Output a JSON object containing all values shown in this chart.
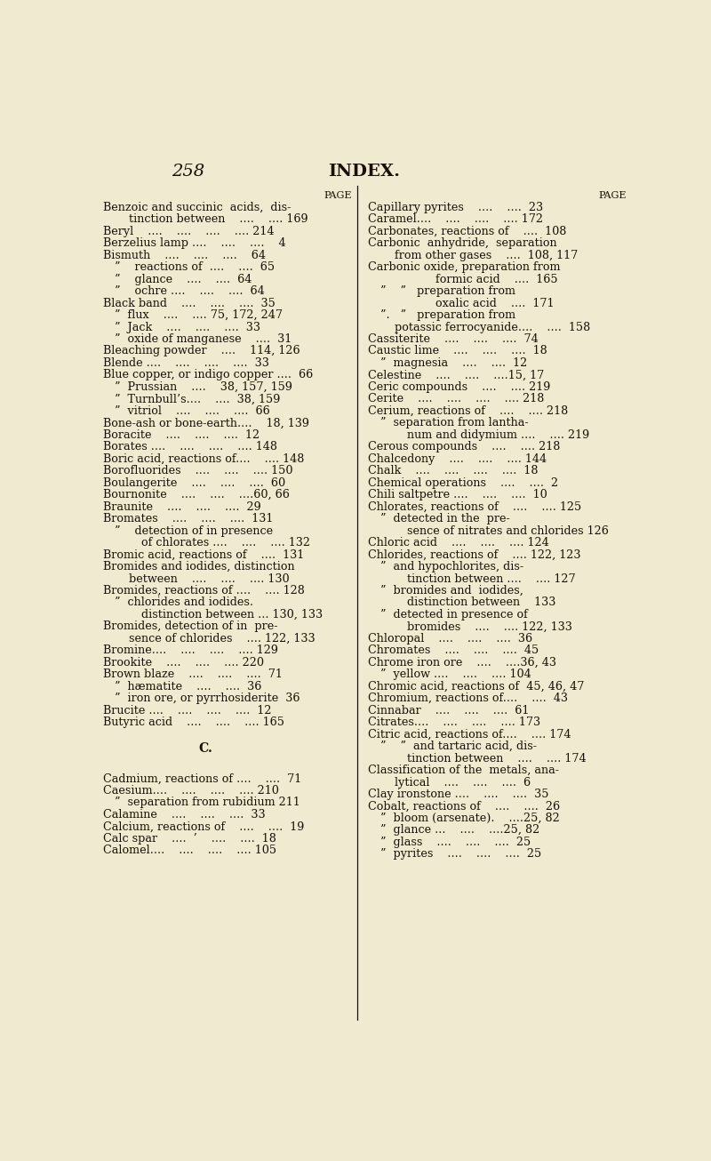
{
  "bg_color": "#f0ead0",
  "text_color": "#1a0e05",
  "page_number": "258",
  "header": "INDEX.",
  "figsize": [
    8.0,
    13.06
  ],
  "dpi": 100,
  "left_entries": [
    {
      "text": "Benzoic and succinic  acids,  dis-",
      "indent": 0,
      "cont": true
    },
    {
      "text": "    tinction between    ....    .... 169",
      "indent": 1
    },
    {
      "text": "Beryl    ....    ....    ....    .... 214",
      "indent": 0
    },
    {
      "text": "Berzelius lamp ....    ....    ....    4",
      "indent": 0
    },
    {
      "text": "Bismuth    ....    ....    ....    64",
      "indent": 0
    },
    {
      "text": "”    reactions of  ....    ....  65",
      "indent": 1
    },
    {
      "text": "”    glance    ....    ....  64",
      "indent": 1
    },
    {
      "text": "”    ochre ....    ....    ....  64",
      "indent": 1
    },
    {
      "text": "Black band    ....    ....    ....  35",
      "indent": 0
    },
    {
      "text": "”  flux    ....    .... 75, 172, 247",
      "indent": 1
    },
    {
      "text": "”  Jack    ....    ....    ....  33",
      "indent": 1
    },
    {
      "text": "”  oxide of manganese    ....  31",
      "indent": 1
    },
    {
      "text": "Bleaching powder    ....    114, 126",
      "indent": 0
    },
    {
      "text": "Blende ....    ....    ....    ....  33",
      "indent": 0
    },
    {
      "text": "Blue copper, or indigo copper ....  66",
      "indent": 0
    },
    {
      "text": "”  Prussian    ....    38, 157, 159",
      "indent": 1
    },
    {
      "text": "”  Turnbull’s....    ....  38, 159",
      "indent": 1
    },
    {
      "text": "”  vitriol    ....    ....    ....  66",
      "indent": 1
    },
    {
      "text": "Bone-ash or bone-earth....    18, 139",
      "indent": 0
    },
    {
      "text": "Boracite    ....    ....    ....  12",
      "indent": 0
    },
    {
      "text": "Borates ....    ....    ....    .... 148",
      "indent": 0
    },
    {
      "text": "Boric acid, reactions of....    .... 148",
      "indent": 0
    },
    {
      "text": "Borofluorides    ....    ....    .... 150",
      "indent": 0
    },
    {
      "text": "Boulangerite    ....    ....    ....  60",
      "indent": 0
    },
    {
      "text": "Bournonite    ....    ....    ....60, 66",
      "indent": 0
    },
    {
      "text": "Braunite    ....    ....    ....  29",
      "indent": 0
    },
    {
      "text": "Bromates    ....    ....    ....  131",
      "indent": 0
    },
    {
      "text": "”    detection of in presence",
      "indent": 1,
      "cont": true
    },
    {
      "text": "    of chlorates ....    ....    .... 132",
      "indent": 2
    },
    {
      "text": "Bromic acid, reactions of    ....  131",
      "indent": 0
    },
    {
      "text": "Bromides and iodides, distinction",
      "indent": 0,
      "cont": true
    },
    {
      "text": "    between    ....    ....    .... 130",
      "indent": 1
    },
    {
      "text": "Bromides, reactions of ....    .... 128",
      "indent": 0
    },
    {
      "text": "”  chlorides and iodides.",
      "indent": 1,
      "cont": true
    },
    {
      "text": "    distinction between ... 130, 133",
      "indent": 2
    },
    {
      "text": "Bromides, detection of in  pre-",
      "indent": 0,
      "cont": true
    },
    {
      "text": "    sence of chlorides    .... 122, 133",
      "indent": 1
    },
    {
      "text": "Bromine....    ....    ....    .... 129",
      "indent": 0
    },
    {
      "text": "Brookite    ....    ....    .... 220",
      "indent": 0
    },
    {
      "text": "Brown blaze    ....    ....    ....  71",
      "indent": 0
    },
    {
      "text": "”  hæmatite    ....    ....  36",
      "indent": 1
    },
    {
      "text": "”  iron ore, or pyrrhosiderite  36",
      "indent": 1
    },
    {
      "text": "Brucite ....    ....    ....    ....  12",
      "indent": 0
    },
    {
      "text": "Butyric acid    ....    ....    .... 165",
      "indent": 0
    },
    {
      "text": "",
      "indent": 0,
      "spacer": true
    },
    {
      "text": "C.",
      "indent": 0,
      "section": true
    },
    {
      "text": "",
      "indent": 0,
      "spacer": true
    },
    {
      "text": "Cadmium, reactions of ....    ....  71",
      "indent": 0
    },
    {
      "text": "Caesium....    ....    ....    .... 210",
      "indent": 0
    },
    {
      "text": "”  separation from rubidium 211",
      "indent": 1
    },
    {
      "text": "Calamine    ....    ....    ....  33",
      "indent": 0
    },
    {
      "text": "Calcium, reactions of    ....    ....  19",
      "indent": 0
    },
    {
      "text": "Calc spar    ....  ’    ....    ....  18",
      "indent": 0
    },
    {
      "text": "Calomel....    ....    ....    .... 105",
      "indent": 0
    }
  ],
  "right_entries": [
    {
      "text": "Capillary pyrites    ....    ....  23",
      "indent": 0
    },
    {
      "text": "Caramel....    ....    ....    .... 172",
      "indent": 0
    },
    {
      "text": "Carbonates, reactions of    ....  108",
      "indent": 0
    },
    {
      "text": "Carbonic  anhydride,  separation",
      "indent": 0,
      "cont": true
    },
    {
      "text": "    from other gases    ....  108, 117",
      "indent": 1
    },
    {
      "text": "Carbonic oxide, preparation from",
      "indent": 0,
      "cont": true
    },
    {
      "text": "            formic acid    ....  165",
      "indent": 2
    },
    {
      "text": "”    ”   preparation from",
      "indent": 1,
      "cont": true
    },
    {
      "text": "            oxalic acid    ....  171",
      "indent": 2
    },
    {
      "text": "”.   ”   preparation from",
      "indent": 1,
      "cont": true
    },
    {
      "text": "    potassic ferrocyanide....    ....  158",
      "indent": 1
    },
    {
      "text": "Cassiterite    ....    ....    ....  74",
      "indent": 0
    },
    {
      "text": "Caustic lime    ....    ....    ....  18",
      "indent": 0
    },
    {
      "text": "”  magnesia    ....    ....  12",
      "indent": 1
    },
    {
      "text": "Celestine    ....    ....    ....15, 17",
      "indent": 0
    },
    {
      "text": "Ceric compounds    ....    .... 219",
      "indent": 0
    },
    {
      "text": "Cerite    ....    ....    ....    .... 218",
      "indent": 0
    },
    {
      "text": "Cerium, reactions of    ....    .... 218",
      "indent": 0
    },
    {
      "text": "”  separation from lantha-",
      "indent": 1,
      "cont": true
    },
    {
      "text": "    num and didymium ....    .... 219",
      "indent": 2
    },
    {
      "text": "Cerous compounds    ....    .... 218",
      "indent": 0
    },
    {
      "text": "Chalcedony    ....    ....    .... 144",
      "indent": 0
    },
    {
      "text": "Chalk    ....    ....    ....    ....  18",
      "indent": 0
    },
    {
      "text": "Chemical operations    ....    ....  2",
      "indent": 0
    },
    {
      "text": "Chili saltpetre ....    ....    ....  10",
      "indent": 0
    },
    {
      "text": "Chlorates, reactions of    ....    .... 125",
      "indent": 0
    },
    {
      "text": "”  detected in the  pre-",
      "indent": 1,
      "cont": true
    },
    {
      "text": "    sence of nitrates and chlorides 126",
      "indent": 2
    },
    {
      "text": "Chloric acid    ....    ....    .... 124",
      "indent": 0
    },
    {
      "text": "Chlorides, reactions of    .... 122, 123",
      "indent": 0
    },
    {
      "text": "”  and hypochlorites, dis-",
      "indent": 1,
      "cont": true
    },
    {
      "text": "    tinction between ....    .... 127",
      "indent": 2
    },
    {
      "text": "”  bromides and  iodides,",
      "indent": 1,
      "cont": true
    },
    {
      "text": "    distinction between    133",
      "indent": 2
    },
    {
      "text": "”  detected in presence of",
      "indent": 1,
      "cont": true
    },
    {
      "text": "    bromides    ....    .... 122, 133",
      "indent": 2
    },
    {
      "text": "Chloropal    ....    ....    ....  36",
      "indent": 0
    },
    {
      "text": "Chromates    ....    ....    ....  45",
      "indent": 0
    },
    {
      "text": "Chrome iron ore    ....    ....36, 43",
      "indent": 0
    },
    {
      "text": "”  yellow ....    ....    .... 104",
      "indent": 1
    },
    {
      "text": "Chromic acid, reactions of  45, 46, 47",
      "indent": 0
    },
    {
      "text": "Chromium, reactions of....    ....  43",
      "indent": 0
    },
    {
      "text": "Cinnabar    ....    ....    ....  61",
      "indent": 0
    },
    {
      "text": "Citrates....    ....    ....    .... 173",
      "indent": 0
    },
    {
      "text": "Citric acid, reactions of....    .... 174",
      "indent": 0
    },
    {
      "text": "”    ”  and tartaric acid, dis-",
      "indent": 1,
      "cont": true
    },
    {
      "text": "    tinction between    ....    .... 174",
      "indent": 2
    },
    {
      "text": "Classification of the  metals, ana-",
      "indent": 0,
      "cont": true
    },
    {
      "text": "    lytical    ....    ....    ....  6",
      "indent": 1
    },
    {
      "text": "Clay ironstone ....    ....    ....  35",
      "indent": 0
    },
    {
      "text": "Cobalt, reactions of    ....    ....  26",
      "indent": 0
    },
    {
      "text": "”  bloom (arsenate).    ....25, 82",
      "indent": 1
    },
    {
      "text": "”  glance ...    ....    ....25, 82",
      "indent": 1
    },
    {
      "text": "”  glass    ....    ....    ....  25",
      "indent": 1
    },
    {
      "text": "”  pyrites    ....    ....    ....  25",
      "indent": 1
    }
  ]
}
